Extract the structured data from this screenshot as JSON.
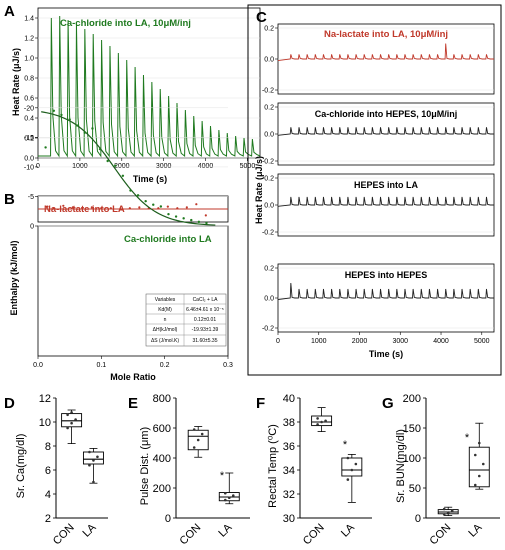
{
  "panels": {
    "A": {
      "letter": "A",
      "title": "Ca-chloride into LA, 10μM/inj",
      "xlabel": "Time (s)",
      "ylabel": "Heat Rate (μJ/s)",
      "xticks": [
        "0",
        "1000",
        "2000",
        "3000",
        "4000",
        "5000"
      ],
      "yticks": [
        "0.0",
        "0.2",
        "0.4",
        "0.6",
        "0.8",
        "1.0",
        "1.2",
        "1.4"
      ]
    },
    "B": {
      "letter": "B",
      "top_title": "Na-lactate into LA",
      "bottom_title": "Ca-chloride into LA",
      "xlabel": "Mole Ratio",
      "ylabel": "Enthalpy (kJ/mol)",
      "xticks": [
        "0.0",
        "0.1",
        "0.2",
        "0.3"
      ],
      "yticks": [
        "0",
        "-5",
        "-10",
        "-15",
        "-20"
      ],
      "table": {
        "header": [
          "Variables",
          "CaCl₂ + LA"
        ],
        "rows": [
          [
            "Kd(M)",
            "6.46±4.61 x 10⁻⁵"
          ],
          [
            "n",
            "0.12±0.01"
          ],
          [
            "ΔH(kJ/mol)",
            "-19.93±1.39"
          ],
          [
            "ΔS (J/mol.K)",
            "31.60±5.35"
          ]
        ]
      }
    },
    "C": {
      "letter": "C",
      "ylabel": "Heat Rate (μJ/s)",
      "xlabel": "Time (s)",
      "xticks": [
        "0",
        "1000",
        "2000",
        "3000",
        "4000",
        "5000"
      ],
      "yticks": [
        "0.2",
        "0.0",
        "-0.2"
      ],
      "subplots": [
        {
          "title": "Na-lactate into LA, 10μM/inj",
          "color": "#c0392b"
        },
        {
          "title": "Ca-chloride into HEPES, 10μM/inj",
          "color": "#222222"
        },
        {
          "title": "HEPES into LA",
          "color": "#222222"
        },
        {
          "title": "HEPES into HEPES",
          "color": "#222222"
        }
      ]
    },
    "D": {
      "letter": "D",
      "ylabel": "Sr. Ca(mg/dl)",
      "yticks": [
        "2",
        "4",
        "6",
        "8",
        "10",
        "12"
      ],
      "star": "*"
    },
    "E": {
      "letter": "E",
      "ylabel": "Pulse Dist. (μm)",
      "yticks": [
        "0",
        "200",
        "400",
        "600",
        "800"
      ],
      "star": "*"
    },
    "F": {
      "letter": "F",
      "ylabel": "Rectal Temp (⁰C)",
      "yticks": [
        "30",
        "32",
        "34",
        "36",
        "38",
        "40"
      ],
      "star": "*"
    },
    "G": {
      "letter": "G",
      "ylabel": "Sr. BUN(mg/dl)",
      "yticks": [
        "0",
        "50",
        "100",
        "150",
        "200"
      ],
      "star": "*"
    }
  },
  "chart_data": [
    {
      "id": "A",
      "type": "line",
      "title": "Ca-chloride into LA, 10μM/inj",
      "xlabel": "Time (s)",
      "ylabel": "Heat Rate (μJ/s)",
      "xlim": [
        0,
        5300
      ],
      "ylim": [
        0,
        1.5
      ],
      "color": "#1f7a1f",
      "grid": true,
      "injection_times": [
        300,
        500,
        700,
        900,
        1100,
        1300,
        1500,
        1700,
        1900,
        2100,
        2300,
        2500,
        2700,
        2900,
        3100,
        3300,
        3500,
        3700,
        3900,
        4100,
        4300,
        4500,
        4700,
        4900,
        5100
      ],
      "peak_heights": [
        1.4,
        1.42,
        1.38,
        1.34,
        1.29,
        1.24,
        1.18,
        1.12,
        1.05,
        0.98,
        0.91,
        0.83,
        0.76,
        0.69,
        0.62,
        0.55,
        0.48,
        0.42,
        0.37,
        0.32,
        0.28,
        0.25,
        0.22,
        0.2,
        0.19
      ]
    },
    {
      "id": "B-top",
      "type": "scatter",
      "title": "Na-lactate into LA",
      "x": [
        0.015,
        0.025,
        0.04,
        0.055,
        0.07,
        0.085,
        0.1,
        0.115,
        0.13,
        0.145,
        0.16,
        0.175,
        0.19,
        0.205,
        0.22,
        0.235,
        0.25,
        0.265
      ],
      "y": [
        0.3,
        0.1,
        0.4,
        0.2,
        0.1,
        0.2,
        0.1,
        0.1,
        0.0,
        0.1,
        0.2,
        0.1,
        0.1,
        0.3,
        0.1,
        0.2,
        0.6,
        -0.8
      ],
      "color": "#c0392b"
    },
    {
      "id": "B-bottom",
      "type": "scatter",
      "title": "Ca-chloride into LA",
      "xlabel": "Mole Ratio",
      "ylabel": "Enthalpy (kJ/mol)",
      "xlim": [
        0,
        0.3
      ],
      "ylim": [
        -22,
        0
      ],
      "color": "#1f7a1f",
      "x": [
        0.012,
        0.025,
        0.037,
        0.05,
        0.062,
        0.074,
        0.086,
        0.098,
        0.11,
        0.122,
        0.134,
        0.146,
        0.158,
        0.17,
        0.182,
        0.194,
        0.206,
        0.218,
        0.23,
        0.242,
        0.254,
        0.266
      ],
      "y": [
        -13.3,
        -19.5,
        -18.8,
        -18.0,
        -17.0,
        -15.8,
        -16.5,
        -13.0,
        -11.0,
        -10.2,
        -8.5,
        -6.0,
        -5.2,
        -4.2,
        -3.6,
        -3.3,
        -2.0,
        -1.6,
        -1.3,
        -1.0,
        -0.7,
        -0.5
      ],
      "fit": {
        "dH": -19.93,
        "n": 0.12,
        "Kd": 6.46e-05
      }
    },
    {
      "id": "C",
      "type": "line",
      "xlabel": "Time (s)",
      "ylabel": "Heat Rate (μJ/s)",
      "xlim": [
        0,
        5300
      ],
      "ylim": [
        -0.2,
        0.2
      ],
      "injection_times": [
        300,
        500,
        700,
        900,
        1100,
        1300,
        1500,
        1700,
        1900,
        2100,
        2300,
        2500,
        2700,
        2900,
        3100,
        3300,
        3500,
        3700,
        3900,
        4100,
        4300,
        4500,
        4700,
        4900,
        5100
      ],
      "series": [
        {
          "name": "Na-lactate into LA, 10μM/inj",
          "peak": 0.03,
          "extra_peak": {
            "t": 4100,
            "value": 0.1
          }
        },
        {
          "name": "Ca-chloride into HEPES, 10μM/inj",
          "peak": 0.05
        },
        {
          "name": "HEPES into LA",
          "peak": 0.06
        },
        {
          "name": "HEPES into HEPES",
          "peak": 0.06,
          "first_peak": 0.1
        }
      ]
    },
    {
      "id": "D",
      "type": "box",
      "ylabel": "Sr. Ca(mg/dl)",
      "ylim": [
        2,
        12
      ],
      "categories": [
        "CON",
        "LA"
      ],
      "boxes": [
        {
          "min": 8.2,
          "q1": 9.6,
          "median": 10.1,
          "q3": 10.7,
          "max": 11.0,
          "points": [
            9.5,
            9.9,
            10.2,
            10.6,
            10.8
          ]
        },
        {
          "min": 4.9,
          "q1": 6.5,
          "median": 6.9,
          "q3": 7.5,
          "max": 7.8,
          "points": [
            6.4,
            6.8,
            7.1,
            7.5,
            5.0
          ]
        }
      ],
      "significance": [
        "",
        "*"
      ]
    },
    {
      "id": "E",
      "type": "box",
      "ylabel": "Pulse Dist. (μm)",
      "ylim": [
        0,
        800
      ],
      "categories": [
        "CON",
        "LA"
      ],
      "boxes": [
        {
          "min": 405,
          "q1": 455,
          "median": 545,
          "q3": 585,
          "max": 610,
          "points": [
            470,
            520,
            560,
            590
          ]
        },
        {
          "min": 95,
          "q1": 115,
          "median": 140,
          "q3": 170,
          "max": 300,
          "points": [
            120,
            135,
            150,
            165
          ]
        }
      ],
      "significance": [
        "",
        "*"
      ]
    },
    {
      "id": "F",
      "type": "box",
      "ylabel": "Rectal Temp (⁰C)",
      "ylim": [
        30,
        40
      ],
      "categories": [
        "CON",
        "LA"
      ],
      "boxes": [
        {
          "min": 37.2,
          "q1": 37.7,
          "median": 38.0,
          "q3": 38.5,
          "max": 39.2,
          "points": [
            37.8,
            38.0,
            38.1,
            38.3
          ]
        },
        {
          "min": 31.3,
          "q1": 33.5,
          "median": 34.0,
          "q3": 35.0,
          "max": 35.3,
          "points": [
            33.2,
            34.0,
            34.5,
            35.0
          ]
        }
      ],
      "significance": [
        "",
        "*"
      ]
    },
    {
      "id": "G",
      "type": "box",
      "ylabel": "Sr. BUN(mg/dl)",
      "ylim": [
        0,
        200
      ],
      "categories": [
        "CON",
        "LA"
      ],
      "boxes": [
        {
          "min": 4,
          "q1": 7,
          "median": 10,
          "q3": 14,
          "max": 18,
          "points": [
            6,
            9,
            12,
            15
          ]
        },
        {
          "min": 48,
          "q1": 52,
          "median": 80,
          "q3": 118,
          "max": 158,
          "points": [
            55,
            70,
            90,
            105,
            125
          ]
        }
      ],
      "significance": [
        "",
        "*"
      ]
    }
  ]
}
